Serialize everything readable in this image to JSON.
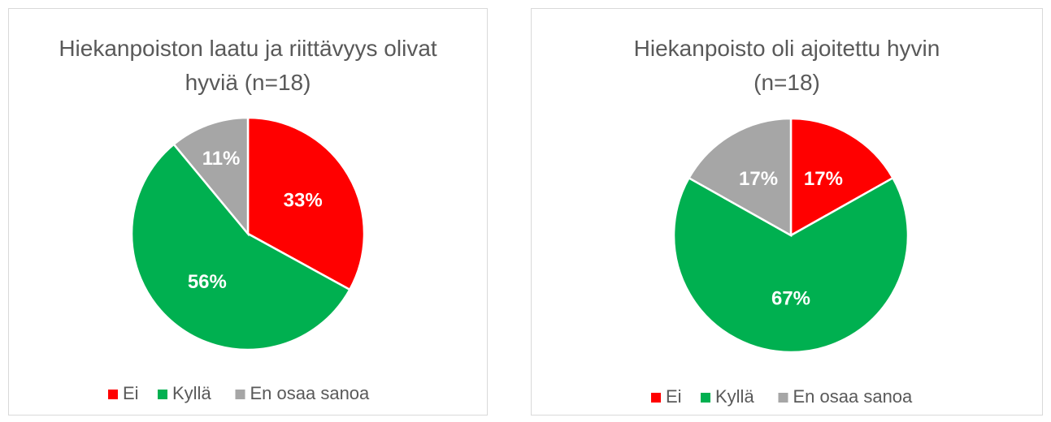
{
  "chart_data": [
    {
      "type": "pie",
      "title": "Hiekanpoiston laatu ja riittävyys olivat hyviä (n=18)",
      "categories": [
        "Ei",
        "Kyllä",
        "En osaa sanoa"
      ],
      "values": [
        33,
        56,
        11
      ],
      "value_labels": [
        "33%",
        "56%",
        "11%"
      ],
      "colors": [
        "#ff0000",
        "#00b050",
        "#a6a6a6"
      ]
    },
    {
      "type": "pie",
      "title": "Hiekanpoisto oli ajoitettu hyvin (n=18)",
      "categories": [
        "Ei",
        "Kyllä",
        "En osaa sanoa"
      ],
      "values": [
        17,
        67,
        17
      ],
      "value_labels": [
        "17%",
        "67%",
        "17%"
      ],
      "colors": [
        "#ff0000",
        "#00b050",
        "#a6a6a6"
      ]
    }
  ]
}
